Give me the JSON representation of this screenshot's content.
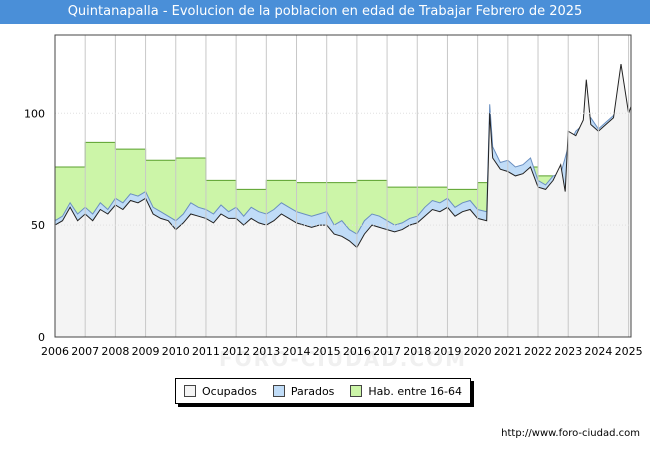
{
  "chart_data": {
    "type": "area",
    "title": "Quintanapalla - Evolucion de la poblacion en edad de Trabajar Febrero de 2025",
    "xlabel": "",
    "ylabel": "",
    "xlim": [
      2006,
      2025.08
    ],
    "ylim": [
      0,
      135
    ],
    "x_ticks": [
      "2006",
      "2007",
      "2008",
      "2009",
      "2010",
      "2011",
      "2012",
      "2013",
      "2014",
      "2015",
      "2016",
      "2017",
      "2018",
      "2019",
      "2020",
      "2021",
      "2022",
      "2023",
      "2024",
      "2025"
    ],
    "y_ticks": [
      "0",
      "50",
      "100"
    ],
    "watermark": "FORO-CIUDAD.COM",
    "series": [
      {
        "name": "Hab. entre 16-64",
        "color": "#ccf5a8",
        "points": [
          [
            2006,
            76
          ],
          [
            2007,
            76
          ],
          [
            2007,
            87
          ],
          [
            2008,
            87
          ],
          [
            2008,
            84
          ],
          [
            2009,
            84
          ],
          [
            2009,
            79
          ],
          [
            2010,
            79
          ],
          [
            2010,
            80
          ],
          [
            2011,
            80
          ],
          [
            2011,
            70
          ],
          [
            2012,
            70
          ],
          [
            2012,
            66
          ],
          [
            2013,
            66
          ],
          [
            2013,
            70
          ],
          [
            2014,
            70
          ],
          [
            2014,
            69
          ],
          [
            2015,
            69
          ],
          [
            2015,
            69
          ],
          [
            2016,
            69
          ],
          [
            2016,
            70
          ],
          [
            2017,
            70
          ],
          [
            2017,
            67
          ],
          [
            2018,
            67
          ],
          [
            2018,
            67
          ],
          [
            2019,
            67
          ],
          [
            2019,
            66
          ],
          [
            2020,
            66
          ],
          [
            2020,
            69
          ],
          [
            2020.4,
            69
          ],
          [
            2020.4,
            78
          ],
          [
            2021,
            78
          ],
          [
            2021,
            76
          ],
          [
            2022,
            76
          ],
          [
            2022,
            72
          ],
          [
            2022.5,
            72
          ]
        ]
      },
      {
        "name": "Parados",
        "color": "#c0dcf7",
        "points": [
          [
            2006,
            52
          ],
          [
            2006.25,
            54
          ],
          [
            2006.5,
            60
          ],
          [
            2006.75,
            55
          ],
          [
            2007,
            58
          ],
          [
            2007.25,
            55
          ],
          [
            2007.5,
            60
          ],
          [
            2007.75,
            57
          ],
          [
            2008,
            62
          ],
          [
            2008.25,
            60
          ],
          [
            2008.5,
            64
          ],
          [
            2008.75,
            63
          ],
          [
            2009,
            65
          ],
          [
            2009.25,
            58
          ],
          [
            2009.5,
            56
          ],
          [
            2009.75,
            54
          ],
          [
            2010,
            52
          ],
          [
            2010.25,
            55
          ],
          [
            2010.5,
            60
          ],
          [
            2010.75,
            58
          ],
          [
            2011,
            57
          ],
          [
            2011.25,
            55
          ],
          [
            2011.5,
            59
          ],
          [
            2011.75,
            56
          ],
          [
            2012,
            58
          ],
          [
            2012.25,
            54
          ],
          [
            2012.5,
            58
          ],
          [
            2012.75,
            56
          ],
          [
            2013,
            55
          ],
          [
            2013.25,
            57
          ],
          [
            2013.5,
            60
          ],
          [
            2013.75,
            58
          ],
          [
            2014,
            56
          ],
          [
            2014.25,
            55
          ],
          [
            2014.5,
            54
          ],
          [
            2014.75,
            55
          ],
          [
            2015,
            56
          ],
          [
            2015.25,
            50
          ],
          [
            2015.5,
            52
          ],
          [
            2015.75,
            48
          ],
          [
            2016,
            46
          ],
          [
            2016.25,
            52
          ],
          [
            2016.5,
            55
          ],
          [
            2016.75,
            54
          ],
          [
            2017,
            52
          ],
          [
            2017.25,
            50
          ],
          [
            2017.5,
            51
          ],
          [
            2017.75,
            53
          ],
          [
            2018,
            54
          ],
          [
            2018.25,
            58
          ],
          [
            2018.5,
            61
          ],
          [
            2018.75,
            60
          ],
          [
            2019,
            62
          ],
          [
            2019.25,
            58
          ],
          [
            2019.5,
            60
          ],
          [
            2019.75,
            61
          ],
          [
            2020,
            57
          ],
          [
            2020.3,
            56
          ],
          [
            2020.4,
            104
          ],
          [
            2020.5,
            85
          ],
          [
            2020.75,
            78
          ],
          [
            2021,
            79
          ],
          [
            2021.25,
            76
          ],
          [
            2021.5,
            77
          ],
          [
            2021.75,
            80
          ],
          [
            2022,
            70
          ],
          [
            2022.25,
            68
          ],
          [
            2022.5,
            72
          ],
          [
            2022.75,
            73
          ],
          [
            2023,
            85
          ],
          [
            2023.25,
            92
          ],
          [
            2023.5,
            95
          ],
          [
            2023.75,
            98
          ],
          [
            2024,
            93
          ],
          [
            2024.25,
            96
          ],
          [
            2024.5,
            99
          ],
          [
            2024.75,
            103
          ],
          [
            2025,
            100
          ],
          [
            2025.08,
            102
          ]
        ]
      },
      {
        "name": "Ocupados",
        "color": "#f4f4f4",
        "points": [
          [
            2006,
            50
          ],
          [
            2006.25,
            52
          ],
          [
            2006.5,
            58
          ],
          [
            2006.75,
            52
          ],
          [
            2007,
            55
          ],
          [
            2007.25,
            52
          ],
          [
            2007.5,
            57
          ],
          [
            2007.75,
            55
          ],
          [
            2008,
            59
          ],
          [
            2008.25,
            57
          ],
          [
            2008.5,
            61
          ],
          [
            2008.75,
            60
          ],
          [
            2009,
            62
          ],
          [
            2009.25,
            55
          ],
          [
            2009.5,
            53
          ],
          [
            2009.75,
            52
          ],
          [
            2010,
            48
          ],
          [
            2010.25,
            51
          ],
          [
            2010.5,
            55
          ],
          [
            2010.75,
            54
          ],
          [
            2011,
            53
          ],
          [
            2011.25,
            51
          ],
          [
            2011.5,
            55
          ],
          [
            2011.75,
            53
          ],
          [
            2012,
            53
          ],
          [
            2012.25,
            50
          ],
          [
            2012.5,
            53
          ],
          [
            2012.75,
            51
          ],
          [
            2013,
            50
          ],
          [
            2013.25,
            52
          ],
          [
            2013.5,
            55
          ],
          [
            2013.75,
            53
          ],
          [
            2014,
            51
          ],
          [
            2014.25,
            50
          ],
          [
            2014.5,
            49
          ],
          [
            2014.75,
            50
          ],
          [
            2015,
            50
          ],
          [
            2015.25,
            46
          ],
          [
            2015.5,
            45
          ],
          [
            2015.75,
            43
          ],
          [
            2016,
            40
          ],
          [
            2016.25,
            46
          ],
          [
            2016.5,
            50
          ],
          [
            2016.75,
            49
          ],
          [
            2017,
            48
          ],
          [
            2017.25,
            47
          ],
          [
            2017.5,
            48
          ],
          [
            2017.75,
            50
          ],
          [
            2018,
            51
          ],
          [
            2018.25,
            54
          ],
          [
            2018.5,
            57
          ],
          [
            2018.75,
            56
          ],
          [
            2019,
            58
          ],
          [
            2019.25,
            54
          ],
          [
            2019.5,
            56
          ],
          [
            2019.75,
            57
          ],
          [
            2020,
            53
          ],
          [
            2020.3,
            52
          ],
          [
            2020.4,
            100
          ],
          [
            2020.5,
            80
          ],
          [
            2020.75,
            75
          ],
          [
            2021,
            74
          ],
          [
            2021.25,
            72
          ],
          [
            2021.5,
            73
          ],
          [
            2021.75,
            76
          ],
          [
            2022,
            67
          ],
          [
            2022.25,
            66
          ],
          [
            2022.5,
            70
          ],
          [
            2022.75,
            77
          ],
          [
            2022.9,
            65
          ],
          [
            2023,
            92
          ],
          [
            2023.25,
            90
          ],
          [
            2023.5,
            97
          ],
          [
            2023.6,
            115
          ],
          [
            2023.75,
            95
          ],
          [
            2024,
            92
          ],
          [
            2024.25,
            95
          ],
          [
            2024.5,
            98
          ],
          [
            2024.75,
            122
          ],
          [
            2025,
            100
          ],
          [
            2025.08,
            103
          ]
        ]
      }
    ],
    "legend": [
      "Ocupados",
      "Parados",
      "Hab. entre 16-64"
    ],
    "legend_position": "bottom-center"
  },
  "source_text": "http://www.foro-ciudad.com"
}
